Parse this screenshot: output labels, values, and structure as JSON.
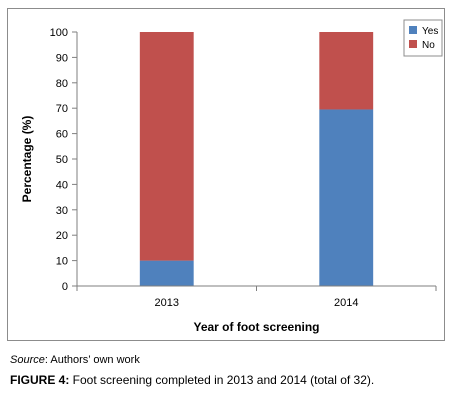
{
  "chart_data": {
    "type": "bar",
    "stacked": true,
    "categories": [
      "2013",
      "2014"
    ],
    "series": [
      {
        "name": "Yes",
        "values": [
          10,
          69.5
        ],
        "color": "#4f81bd"
      },
      {
        "name": "No",
        "values": [
          90,
          30.5
        ],
        "color": "#c0504d"
      }
    ],
    "xlabel": "Year of foot screening",
    "ylabel": "Percentage (%)",
    "ylim": [
      0,
      100
    ],
    "yticks": [
      0,
      10,
      20,
      30,
      40,
      50,
      60,
      70,
      80,
      90,
      100
    ],
    "grid": false,
    "legend": "top-right"
  },
  "source": {
    "label": "Source",
    "text": ": Authors’ own work"
  },
  "caption": {
    "label": "FIGURE 4:",
    "text": " Foot screening completed in 2013 and 2014 (total of 32)."
  }
}
